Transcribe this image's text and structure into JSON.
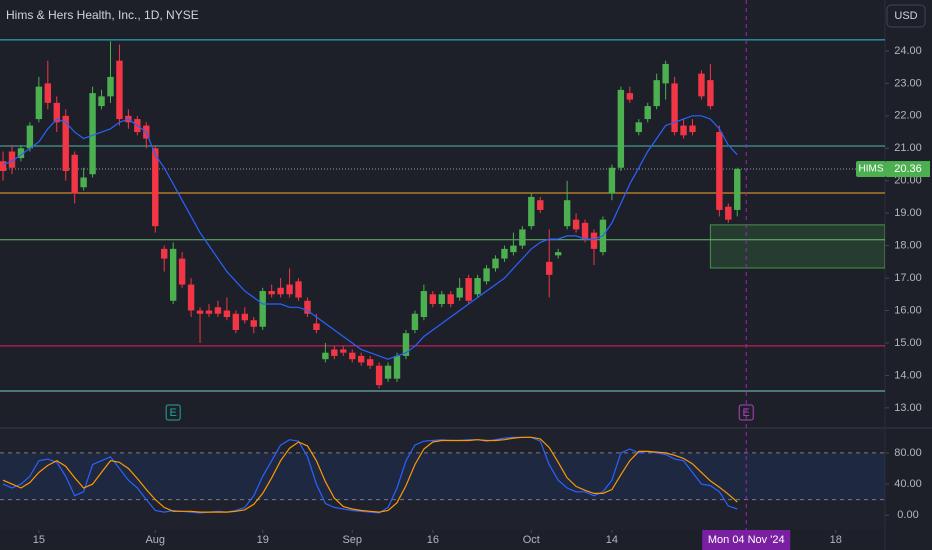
{
  "chart_data": [
    {
      "type": "candlestick",
      "title": "Hims & Hers Health, Inc., 1D, NYSE",
      "currency": "USD",
      "up_color": "#4caf50",
      "down_color": "#f23645",
      "xlim": [
        -0.34,
        98.5
      ],
      "xticks": [
        {
          "value": 4,
          "label": "15"
        },
        {
          "value": 17,
          "label": "Aug"
        },
        {
          "value": 29,
          "label": "19"
        },
        {
          "value": 39,
          "label": "Sep"
        },
        {
          "value": 48,
          "label": "16"
        },
        {
          "value": 59,
          "label": "Oct"
        },
        {
          "value": 68,
          "label": "14"
        },
        {
          "value": 93,
          "label": "18"
        }
      ],
      "ylim": [
        12.41,
        25.57
      ],
      "yticks": [
        {
          "value": 13,
          "label": "13.00"
        },
        {
          "value": 14,
          "label": "14.00"
        },
        {
          "value": 15,
          "label": "15.00"
        },
        {
          "value": 16,
          "label": "16.00"
        },
        {
          "value": 17,
          "label": "17.00"
        },
        {
          "value": 18,
          "label": "18.00"
        },
        {
          "value": 19,
          "label": "19.00"
        },
        {
          "value": 20,
          "label": "20.00"
        },
        {
          "value": 21,
          "label": "21.00"
        },
        {
          "value": 22,
          "label": "22.00"
        },
        {
          "value": 23,
          "label": "23.00"
        },
        {
          "value": 24,
          "label": "24.00"
        }
      ],
      "open": [
        20.6,
        20.9,
        20.7,
        21.0,
        21.9,
        23.0,
        22.4,
        22.0,
        20.8,
        19.8,
        20.2,
        22.3,
        22.6,
        23.7,
        22.0,
        21.9,
        21.7,
        21.0,
        17.9,
        16.3,
        17.6,
        16.8,
        16.0,
        16.0,
        16.1,
        16.0,
        15.9,
        15.9,
        15.7,
        15.5,
        16.6,
        16.7,
        16.8,
        16.9,
        16.3,
        15.6,
        14.5,
        14.8,
        14.8,
        14.7,
        14.6,
        14.5,
        14.3,
        13.9,
        13.9,
        14.6,
        15.4,
        15.8,
        16.5,
        16.2,
        16.5,
        16.4,
        17.0,
        16.5,
        16.9,
        17.3,
        17.6,
        17.8,
        18.0,
        18.6,
        19.4,
        17.5,
        17.7,
        18.6,
        18.8,
        18.7,
        18.4,
        17.8,
        19.6,
        20.4,
        22.7,
        21.5,
        21.9,
        22.3,
        23.0,
        23.0,
        21.7,
        21.7,
        23.3,
        23.1,
        21.5,
        19.2,
        19.1
      ],
      "high": [
        20.9,
        21.1,
        21.1,
        21.8,
        23.2,
        23.7,
        22.6,
        22.2,
        20.9,
        20.4,
        22.9,
        22.8,
        24.3,
        24.2,
        22.2,
        22.0,
        21.8,
        21.1,
        18.0,
        18.1,
        17.8,
        17.0,
        16.1,
        16.2,
        16.3,
        16.4,
        16.0,
        16.1,
        15.8,
        16.7,
        16.8,
        17.0,
        17.3,
        17.0,
        16.4,
        15.9,
        15.0,
        14.9,
        14.9,
        14.8,
        14.7,
        14.6,
        14.4,
        14.4,
        14.7,
        15.4,
        16.0,
        16.8,
        16.6,
        16.6,
        16.6,
        17.0,
        17.1,
        17.1,
        17.4,
        17.7,
        18.0,
        18.4,
        18.6,
        19.6,
        19.5,
        18.5,
        17.9,
        20.0,
        19.0,
        18.8,
        18.5,
        18.9,
        20.5,
        22.9,
        22.9,
        21.9,
        22.4,
        23.3,
        23.7,
        23.2,
        21.9,
        21.9,
        23.4,
        23.6,
        21.7,
        19.3,
        20.4
      ],
      "low": [
        20.0,
        20.2,
        20.6,
        20.9,
        21.8,
        22.2,
        21.5,
        20.0,
        19.3,
        19.7,
        20.1,
        22.2,
        22.4,
        21.7,
        21.6,
        21.4,
        21.0,
        18.4,
        17.2,
        16.2,
        16.7,
        15.8,
        15.0,
        15.8,
        15.8,
        15.7,
        15.3,
        15.6,
        15.3,
        15.4,
        16.4,
        16.4,
        16.4,
        16.3,
        15.8,
        15.3,
        14.4,
        14.5,
        14.6,
        14.4,
        14.3,
        14.2,
        13.6,
        13.8,
        13.8,
        14.5,
        15.3,
        15.7,
        16.1,
        16.1,
        16.1,
        16.3,
        16.2,
        16.4,
        16.8,
        17.2,
        17.5,
        17.7,
        17.9,
        18.5,
        19.0,
        16.4,
        17.6,
        18.5,
        18.4,
        18.1,
        17.4,
        17.7,
        19.4,
        20.3,
        22.4,
        21.4,
        21.8,
        22.2,
        22.5,
        21.4,
        21.3,
        21.4,
        22.5,
        22.2,
        18.9,
        18.7,
        18.9
      ],
      "close": [
        20.3,
        20.4,
        21.0,
        21.7,
        22.9,
        22.4,
        21.8,
        20.3,
        19.6,
        20.1,
        22.7,
        22.6,
        23.2,
        21.9,
        21.8,
        21.5,
        21.3,
        18.6,
        17.6,
        17.9,
        16.8,
        16.0,
        15.9,
        15.9,
        15.9,
        15.8,
        15.4,
        15.7,
        15.5,
        16.6,
        16.5,
        16.5,
        16.5,
        16.4,
        15.9,
        15.4,
        14.7,
        14.6,
        14.7,
        14.5,
        14.4,
        14.3,
        13.7,
        14.3,
        14.6,
        15.3,
        15.9,
        16.6,
        16.2,
        16.5,
        16.2,
        16.7,
        16.3,
        17.0,
        17.3,
        17.6,
        17.9,
        18.0,
        18.5,
        19.5,
        19.1,
        17.1,
        17.8,
        19.4,
        18.5,
        18.2,
        17.9,
        18.8,
        20.4,
        22.8,
        22.5,
        21.8,
        22.3,
        23.1,
        23.6,
        21.5,
        21.4,
        21.5,
        22.6,
        22.3,
        19.1,
        18.8,
        20.36
      ],
      "ma": {
        "color": "#2962ff",
        "values": [
          20.5,
          20.6,
          20.8,
          21.0,
          21.2,
          21.6,
          21.9,
          21.8,
          21.5,
          21.3,
          21.4,
          21.5,
          21.6,
          21.8,
          21.9,
          21.7,
          21.5,
          20.8,
          20.4,
          19.9,
          19.4,
          18.9,
          18.4,
          18.0,
          17.6,
          17.2,
          16.9,
          16.6,
          16.4,
          16.2,
          16.2,
          16.2,
          16.1,
          16.1,
          16.0,
          15.8,
          15.6,
          15.4,
          15.2,
          15.0,
          14.8,
          14.7,
          14.6,
          14.5,
          14.6,
          14.7,
          14.9,
          15.2,
          15.4,
          15.6,
          15.8,
          16.0,
          16.2,
          16.4,
          16.6,
          16.8,
          17.0,
          17.3,
          17.6,
          17.9,
          18.1,
          18.2,
          18.2,
          18.3,
          18.3,
          18.2,
          18.2,
          18.3,
          18.7,
          19.3,
          19.9,
          20.4,
          20.9,
          21.3,
          21.7,
          21.8,
          21.9,
          22.0,
          22.0,
          21.9,
          21.6,
          21.1,
          20.8
        ]
      },
      "levels": [
        {
          "value": 24.34,
          "color": "#26c6da"
        },
        {
          "value": 21.07,
          "color": "#4db6ac"
        },
        {
          "value": 19.62,
          "color": "#f5a623"
        },
        {
          "value": 18.18,
          "color": "#66bb6a"
        },
        {
          "value": 14.91,
          "color": "#e91e63"
        },
        {
          "value": 13.52,
          "color": "#80cbc4"
        }
      ],
      "zone": {
        "x": [
          79,
          98.5
        ],
        "y": [
          17.31,
          18.64
        ],
        "color": "#4caf50"
      },
      "price_tag": {
        "symbol": "HIMS",
        "value": 20.36
      },
      "events": [
        {
          "x": 19,
          "label": "E",
          "color": "#26a69a"
        },
        {
          "x": 83,
          "label": "E",
          "color": "#ab47bc"
        }
      ],
      "crosshair": {
        "x": 83,
        "label": "Mon 04 Nov '24"
      }
    },
    {
      "type": "line",
      "ylim": [
        -19,
        112
      ],
      "yticks": [
        {
          "value": 0,
          "label": "0.00"
        },
        {
          "value": 40,
          "label": "40.00"
        },
        {
          "value": 80,
          "label": "80.00"
        }
      ],
      "bands": [
        20,
        80
      ],
      "series": [
        {
          "color": "#2962ff",
          "values": [
            40,
            35,
            40,
            50,
            70,
            72,
            68,
            50,
            25,
            30,
            65,
            70,
            75,
            60,
            45,
            35,
            20,
            6,
            4,
            6,
            5,
            4,
            3,
            4,
            5,
            4,
            6,
            10,
            25,
            50,
            70,
            90,
            97,
            95,
            75,
            40,
            15,
            10,
            8,
            6,
            5,
            4,
            3,
            10,
            35,
            70,
            90,
            95,
            96,
            97,
            96,
            96,
            97,
            97,
            95,
            97,
            99,
            100,
            100,
            100,
            95,
            65,
            45,
            35,
            30,
            30,
            25,
            30,
            45,
            80,
            85,
            80,
            82,
            80,
            78,
            72,
            70,
            55,
            40,
            38,
            30,
            12,
            8
          ]
        },
        {
          "color": "#ff9800",
          "values": [
            45,
            40,
            35,
            42,
            55,
            64,
            70,
            63,
            48,
            35,
            40,
            55,
            70,
            68,
            60,
            47,
            33,
            20,
            10,
            5,
            5,
            5,
            4,
            4,
            4,
            4,
            5,
            7,
            14,
            28,
            48,
            70,
            86,
            94,
            89,
            70,
            43,
            22,
            11,
            8,
            6,
            5,
            4,
            6,
            16,
            38,
            65,
            85,
            94,
            96,
            96,
            96,
            96,
            97,
            96,
            96,
            97,
            99,
            100,
            100,
            98,
            87,
            68,
            48,
            37,
            32,
            28,
            28,
            33,
            52,
            70,
            82,
            82,
            81,
            80,
            77,
            73,
            66,
            55,
            44,
            36,
            27,
            17
          ]
        }
      ]
    }
  ]
}
